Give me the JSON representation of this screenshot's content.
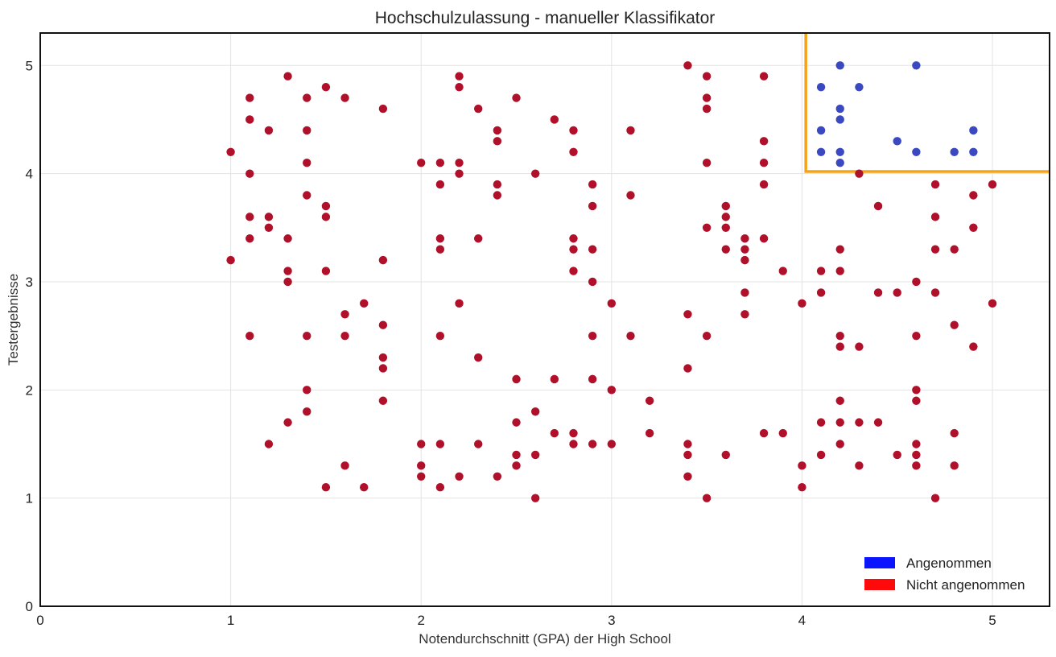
{
  "chart_data": {
    "type": "scatter",
    "title": "Hochschulzulassung - manueller Klassifikator",
    "xlabel": "Notendurchschnitt (GPA) der High School",
    "ylabel": "Testergebnisse",
    "xlim": [
      0,
      5.3
    ],
    "ylim": [
      0,
      5.3
    ],
    "xticks": [
      "0",
      "1",
      "2",
      "3",
      "4",
      "5"
    ],
    "yticks": [
      "0",
      "1",
      "2",
      "3",
      "4",
      "5"
    ],
    "grid": true,
    "legend_position": "bottom-right",
    "legend": [
      {
        "label": "Angenommen",
        "color": "#0a14ff"
      },
      {
        "label": "Nicht angenommen",
        "color": "#ff0a0a"
      }
    ],
    "boundary": {
      "color": "#f5a31a",
      "gpa_threshold": 4.02,
      "test_threshold": 4.02
    },
    "series": [
      {
        "name": "Angenommen",
        "color": "#3a48c2",
        "points": [
          [
            4.1,
            4.8
          ],
          [
            4.2,
            5.0
          ],
          [
            4.6,
            5.0
          ],
          [
            4.3,
            4.8
          ],
          [
            4.2,
            4.6
          ],
          [
            4.2,
            4.5
          ],
          [
            4.1,
            4.4
          ],
          [
            4.1,
            4.2
          ],
          [
            4.2,
            4.2
          ],
          [
            4.2,
            4.1
          ],
          [
            4.5,
            4.3
          ],
          [
            4.6,
            4.2
          ],
          [
            4.8,
            4.2
          ],
          [
            4.9,
            4.4
          ],
          [
            4.9,
            4.2
          ]
        ]
      },
      {
        "name": "Nicht angenommen",
        "color": "#b0102a",
        "points": [
          [
            1.0,
            4.2
          ],
          [
            1.0,
            3.2
          ],
          [
            1.1,
            4.7
          ],
          [
            1.1,
            4.5
          ],
          [
            1.1,
            4.0
          ],
          [
            1.1,
            3.6
          ],
          [
            1.1,
            3.4
          ],
          [
            1.1,
            2.5
          ],
          [
            1.2,
            4.4
          ],
          [
            1.2,
            3.6
          ],
          [
            1.2,
            3.5
          ],
          [
            1.2,
            1.5
          ],
          [
            1.3,
            4.9
          ],
          [
            1.3,
            3.4
          ],
          [
            1.3,
            3.1
          ],
          [
            1.3,
            3.0
          ],
          [
            1.3,
            1.7
          ],
          [
            1.4,
            4.7
          ],
          [
            1.4,
            4.4
          ],
          [
            1.4,
            4.1
          ],
          [
            1.4,
            3.8
          ],
          [
            1.4,
            2.5
          ],
          [
            1.4,
            2.0
          ],
          [
            1.4,
            1.8
          ],
          [
            1.5,
            4.8
          ],
          [
            1.5,
            3.7
          ],
          [
            1.5,
            3.6
          ],
          [
            1.5,
            3.1
          ],
          [
            1.5,
            1.1
          ],
          [
            1.6,
            4.7
          ],
          [
            1.6,
            2.7
          ],
          [
            1.6,
            2.5
          ],
          [
            1.6,
            1.3
          ],
          [
            1.7,
            2.8
          ],
          [
            1.7,
            1.1
          ],
          [
            1.8,
            4.6
          ],
          [
            1.8,
            3.2
          ],
          [
            1.8,
            2.6
          ],
          [
            1.8,
            2.3
          ],
          [
            1.8,
            2.2
          ],
          [
            1.8,
            1.9
          ],
          [
            2.0,
            4.1
          ],
          [
            2.0,
            1.5
          ],
          [
            2.0,
            1.3
          ],
          [
            2.0,
            1.2
          ],
          [
            2.1,
            4.1
          ],
          [
            2.1,
            3.9
          ],
          [
            2.1,
            3.4
          ],
          [
            2.1,
            3.3
          ],
          [
            2.1,
            2.5
          ],
          [
            2.1,
            1.5
          ],
          [
            2.1,
            1.1
          ],
          [
            2.2,
            4.9
          ],
          [
            2.2,
            4.8
          ],
          [
            2.2,
            4.1
          ],
          [
            2.2,
            4.0
          ],
          [
            2.2,
            2.8
          ],
          [
            2.2,
            1.2
          ],
          [
            2.3,
            4.6
          ],
          [
            2.3,
            3.4
          ],
          [
            2.3,
            2.3
          ],
          [
            2.3,
            1.5
          ],
          [
            2.4,
            4.4
          ],
          [
            2.4,
            4.3
          ],
          [
            2.4,
            3.9
          ],
          [
            2.4,
            3.8
          ],
          [
            2.4,
            1.2
          ],
          [
            2.5,
            4.7
          ],
          [
            2.5,
            2.1
          ],
          [
            2.5,
            1.7
          ],
          [
            2.5,
            1.4
          ],
          [
            2.5,
            1.3
          ],
          [
            2.6,
            4.0
          ],
          [
            2.6,
            1.8
          ],
          [
            2.6,
            1.4
          ],
          [
            2.6,
            1.0
          ],
          [
            2.7,
            4.5
          ],
          [
            2.7,
            2.1
          ],
          [
            2.7,
            1.6
          ],
          [
            2.8,
            4.4
          ],
          [
            2.8,
            4.2
          ],
          [
            2.8,
            3.4
          ],
          [
            2.8,
            3.3
          ],
          [
            2.8,
            3.1
          ],
          [
            2.8,
            1.6
          ],
          [
            2.8,
            1.5
          ],
          [
            2.9,
            3.9
          ],
          [
            2.9,
            3.7
          ],
          [
            2.9,
            3.3
          ],
          [
            2.9,
            3.0
          ],
          [
            2.9,
            2.5
          ],
          [
            2.9,
            2.1
          ],
          [
            2.9,
            1.5
          ],
          [
            3.0,
            2.8
          ],
          [
            3.0,
            2.0
          ],
          [
            3.0,
            1.5
          ],
          [
            3.1,
            4.4
          ],
          [
            3.1,
            3.8
          ],
          [
            3.1,
            2.5
          ],
          [
            3.2,
            1.9
          ],
          [
            3.2,
            1.6
          ],
          [
            3.4,
            5.0
          ],
          [
            3.4,
            2.7
          ],
          [
            3.4,
            2.2
          ],
          [
            3.4,
            1.5
          ],
          [
            3.4,
            1.4
          ],
          [
            3.4,
            1.2
          ],
          [
            3.5,
            4.9
          ],
          [
            3.5,
            4.7
          ],
          [
            3.5,
            4.6
          ],
          [
            3.5,
            4.1
          ],
          [
            3.5,
            3.5
          ],
          [
            3.5,
            2.5
          ],
          [
            3.5,
            1.0
          ],
          [
            3.6,
            3.7
          ],
          [
            3.6,
            3.6
          ],
          [
            3.6,
            3.5
          ],
          [
            3.6,
            3.3
          ],
          [
            3.6,
            1.4
          ],
          [
            3.7,
            3.4
          ],
          [
            3.7,
            3.3
          ],
          [
            3.7,
            3.2
          ],
          [
            3.7,
            2.9
          ],
          [
            3.7,
            2.7
          ],
          [
            3.8,
            4.9
          ],
          [
            3.8,
            4.3
          ],
          [
            3.8,
            4.1
          ],
          [
            3.8,
            3.9
          ],
          [
            3.8,
            3.4
          ],
          [
            3.8,
            1.6
          ],
          [
            3.9,
            3.1
          ],
          [
            3.9,
            1.6
          ],
          [
            4.0,
            2.8
          ],
          [
            4.0,
            1.3
          ],
          [
            4.0,
            1.1
          ],
          [
            4.1,
            3.1
          ],
          [
            4.1,
            2.9
          ],
          [
            4.1,
            1.7
          ],
          [
            4.1,
            1.4
          ],
          [
            4.2,
            3.3
          ],
          [
            4.2,
            3.1
          ],
          [
            4.2,
            2.5
          ],
          [
            4.2,
            2.4
          ],
          [
            4.2,
            1.9
          ],
          [
            4.2,
            1.7
          ],
          [
            4.2,
            1.5
          ],
          [
            4.3,
            4.0
          ],
          [
            4.3,
            2.4
          ],
          [
            4.3,
            1.7
          ],
          [
            4.3,
            1.3
          ],
          [
            4.4,
            3.7
          ],
          [
            4.4,
            2.9
          ],
          [
            4.4,
            1.7
          ],
          [
            4.5,
            2.9
          ],
          [
            4.5,
            1.4
          ],
          [
            4.6,
            3.0
          ],
          [
            4.6,
            2.5
          ],
          [
            4.6,
            2.0
          ],
          [
            4.6,
            1.9
          ],
          [
            4.6,
            1.5
          ],
          [
            4.6,
            1.4
          ],
          [
            4.6,
            1.3
          ],
          [
            4.7,
            3.9
          ],
          [
            4.7,
            3.6
          ],
          [
            4.7,
            3.3
          ],
          [
            4.7,
            2.9
          ],
          [
            4.7,
            1.0
          ],
          [
            4.8,
            3.3
          ],
          [
            4.8,
            2.6
          ],
          [
            4.8,
            1.6
          ],
          [
            4.8,
            1.3
          ],
          [
            4.9,
            3.8
          ],
          [
            4.9,
            3.5
          ],
          [
            4.9,
            2.4
          ],
          [
            5.0,
            3.9
          ],
          [
            5.0,
            2.8
          ]
        ]
      }
    ]
  }
}
